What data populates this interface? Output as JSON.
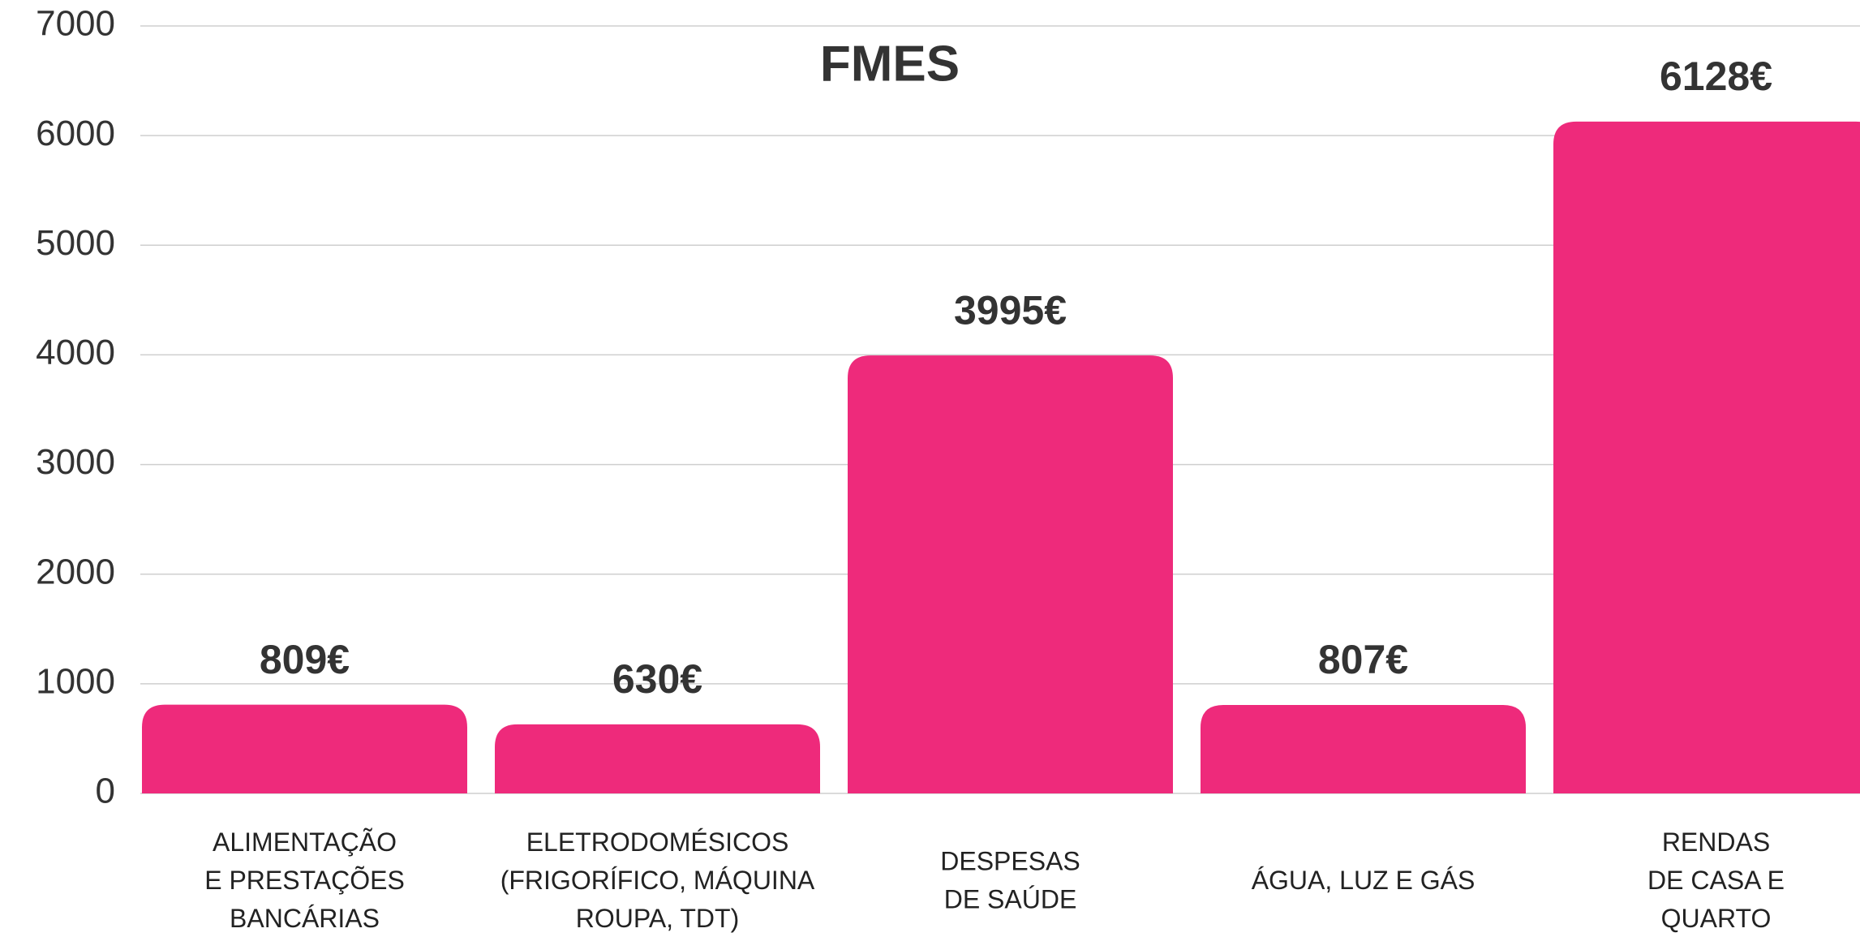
{
  "chart_data": {
    "type": "bar",
    "title": "FMES",
    "categories": [
      "ALIMENTAÇÃO\nE PRESTAÇÕES\nBANCÁRIAS",
      "ELETRODOMÉSICOS\n(FRIGORÍFICO, MÁQUINA\nROUPA, TDT)",
      "DESPESAS\nDE SAÚDE",
      "ÁGUA, LUZ E GÁS",
      "RENDAS\nDE CASA E\nQUARTO"
    ],
    "values": [
      809,
      630,
      3995,
      807,
      6128
    ],
    "value_labels": [
      "809€",
      "630€",
      "3995€",
      "807€",
      "6128€"
    ],
    "color": "#ee2a7b",
    "ylim": [
      0,
      7000
    ],
    "yticks": [
      0,
      1000,
      2000,
      3000,
      4000,
      5000,
      6000,
      7000
    ],
    "grid": true
  }
}
